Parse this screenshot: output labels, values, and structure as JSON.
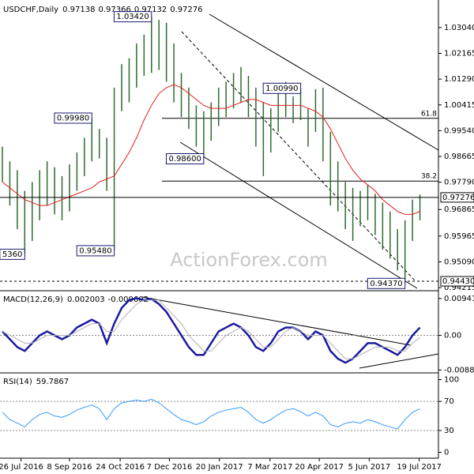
{
  "chart_data": [
    {
      "type": "ohlc",
      "title": "USDCHF,Daily",
      "header_values": [
        0.97138,
        0.97366,
        0.97132,
        0.97276
      ],
      "color": "#2f6a2f",
      "high": [
        0.99,
        0.985,
        0.982,
        0.975,
        0.978,
        0.982,
        0.985,
        0.983,
        0.98,
        0.984,
        0.988,
        0.993,
        0.9998,
        0.996,
        0.993,
        1.01,
        1.018,
        1.02,
        1.025,
        1.028,
        1.0342,
        1.033,
        1.032,
        1.025,
        1.015,
        1.01,
        1.004,
        1.002,
        1.005,
        1.01,
        1.012,
        1.015,
        1.017,
        1.014,
        1.01,
        1.005,
        1.003,
        1.008,
        1.012,
        1.007,
        1.0099,
        1.003,
        1.0095,
        1.01,
        0.995,
        0.985,
        0.978,
        0.976,
        0.975,
        0.977,
        0.974,
        0.971,
        0.968,
        0.962,
        0.965,
        0.972,
        0.9737
      ],
      "low": [
        0.978,
        0.97,
        0.962,
        0.9536,
        0.958,
        0.965,
        0.97,
        0.967,
        0.965,
        0.968,
        0.975,
        0.98,
        0.985,
        0.986,
        0.975,
        0.9548,
        1.002,
        1.005,
        1.01,
        1.014,
        1.015,
        1.016,
        1.012,
        1.005,
        1.0,
        0.996,
        0.99,
        0.986,
        0.992,
        0.997,
        1.0,
        1.003,
        1.005,
        1.0,
        0.99,
        0.98,
        0.988,
        0.995,
        1.0,
        0.998,
        0.999,
        0.99,
        0.995,
        0.985,
        0.97,
        0.968,
        0.962,
        0.958,
        0.963,
        0.965,
        0.96,
        0.955,
        0.952,
        0.948,
        0.9437,
        0.958,
        0.965
      ],
      "ma": {
        "color": "#e02020",
        "values": [
          0.978,
          0.976,
          0.974,
          0.972,
          0.971,
          0.97,
          0.97,
          0.971,
          0.972,
          0.973,
          0.974,
          0.975,
          0.976,
          0.978,
          0.979,
          0.98,
          0.984,
          0.988,
          0.993,
          0.999,
          1.004,
          1.008,
          1.01,
          1.011,
          1.01,
          1.008,
          1.006,
          1.004,
          1.003,
          1.003,
          1.003,
          1.004,
          1.005,
          1.006,
          1.006,
          1.005,
          1.004,
          1.004,
          1.004,
          1.004,
          1.004,
          1.003,
          1.002,
          1.0,
          0.996,
          0.991,
          0.986,
          0.982,
          0.979,
          0.977,
          0.975,
          0.972,
          0.97,
          0.968,
          0.967,
          0.967,
          0.968
        ]
      },
      "xlim": [
        0,
        57
      ],
      "ylim": [
        0.9411,
        1.0384
      ],
      "yticks": [
        {
          "value": 1.0304,
          "label": "1.03040"
        },
        {
          "value": 1.02165,
          "label": "1.02165"
        },
        {
          "value": 1.0129,
          "label": "1.01290"
        },
        {
          "value": 1.00415,
          "label": "1.00415"
        },
        {
          "value": 0.9954,
          "label": "0.99540"
        },
        {
          "value": 0.98665,
          "label": "0.98665"
        },
        {
          "value": 0.9779,
          "label": "0.97790"
        },
        {
          "value": 0.96865,
          "label": "0.96865"
        },
        {
          "value": 0.95965,
          "label": "0.95965"
        },
        {
          "value": 0.9509,
          "label": "0.95090"
        },
        {
          "value": 0.94215,
          "label": "0.94215"
        }
      ],
      "levels": [
        {
          "value": 0.9996,
          "label": "61.8"
        },
        {
          "value": 0.9783,
          "label": "38.2"
        }
      ],
      "price_marks": [
        {
          "value": 0.97276,
          "label": "0.97276"
        },
        {
          "value": 0.9443,
          "label": "0.94430"
        }
      ],
      "annotations": [
        {
          "x": 20,
          "value": 1.0342,
          "label": "1.03420"
        },
        {
          "x": 12,
          "value": 0.9998,
          "label": "0.99980"
        },
        {
          "x": 15,
          "value": 0.9548,
          "label": "0.95480"
        },
        {
          "x": 3,
          "value": 0.9536,
          "label": "5360"
        },
        {
          "x": 27,
          "value": 0.986,
          "label": "0.98600"
        },
        {
          "x": 40,
          "value": 1.0099,
          "label": "1.00990"
        },
        {
          "x": 54,
          "value": 0.9437,
          "label": "0.94370"
        }
      ],
      "watermark": "ActionForex.com"
    },
    {
      "type": "line",
      "title": "MACD(12,26,9)",
      "header_values": [
        0.002003,
        -0.000602
      ],
      "series": [
        {
          "color": "#1a1aa0",
          "values": [
            0.001,
            -0.001,
            -0.003,
            -0.004,
            -0.002,
            0.0,
            0.001,
            0.0,
            -0.001,
            0.0,
            0.002,
            0.003,
            0.004,
            0.003,
            -0.002,
            0.003,
            0.007,
            0.009,
            0.0095,
            0.009,
            0.0093,
            0.008,
            0.006,
            0.003,
            0.0,
            -0.003,
            -0.005,
            -0.005,
            -0.002,
            0.001,
            0.002,
            0.003,
            0.002,
            0.0,
            -0.003,
            -0.004,
            -0.002,
            0.001,
            0.002,
            0.002,
            0.001,
            -0.001,
            0.001,
            0.0,
            -0.004,
            -0.006,
            -0.007,
            -0.006,
            -0.004,
            -0.002,
            -0.002,
            -0.003,
            -0.004,
            -0.005,
            -0.003,
            0.0,
            0.002003
          ]
        },
        {
          "color": "#b0b0b0",
          "values": [
            0.001,
            0.0,
            -0.001,
            -0.002,
            -0.002,
            -0.001,
            0.0,
            0.0,
            0.0,
            0.0,
            0.001,
            0.002,
            0.003,
            0.003,
            0.001,
            0.001,
            0.004,
            0.006,
            0.008,
            0.009,
            0.009,
            0.009,
            0.007,
            0.005,
            0.003,
            0.0,
            -0.002,
            -0.004,
            -0.004,
            -0.002,
            0.0,
            0.001,
            0.002,
            0.001,
            -0.001,
            -0.003,
            -0.003,
            -0.001,
            0.001,
            0.002,
            0.001,
            0.0,
            0.0,
            0.0,
            -0.002,
            -0.004,
            -0.006,
            -0.006,
            -0.005,
            -0.004,
            -0.003,
            -0.003,
            -0.003,
            -0.004,
            -0.004,
            -0.002,
            -0.000602
          ]
        }
      ],
      "xlim": [
        0,
        57
      ],
      "ylim": [
        -0.0092,
        0.0106
      ],
      "yticks": [
        0.009411,
        {
          "value": 0,
          "label": "0.00"
        },
        -0.008852
      ],
      "levels": [
        0
      ]
    },
    {
      "type": "line",
      "title": "RSI(14)",
      "header_values": [
        59.7867
      ],
      "series": [
        {
          "color": "#3399ff",
          "values": [
            55,
            45,
            40,
            35,
            45,
            52,
            55,
            50,
            48,
            52,
            58,
            62,
            65,
            60,
            45,
            60,
            68,
            70,
            72,
            70,
            73,
            68,
            60,
            52,
            45,
            42,
            38,
            42,
            50,
            55,
            58,
            60,
            62,
            55,
            45,
            40,
            45,
            52,
            58,
            60,
            56,
            50,
            55,
            50,
            38,
            35,
            40,
            42,
            40,
            45,
            42,
            38,
            35,
            32,
            45,
            55,
            59.7867
          ]
        }
      ],
      "xlim": [
        0,
        57
      ],
      "ylim": [
        -6,
        105
      ],
      "yticks": [
        100,
        70,
        30,
        0
      ],
      "levels": [
        70,
        30
      ],
      "xticks": [
        {
          "value": 2.5,
          "label": "26 Jul 2016"
        },
        {
          "value": 9.0,
          "label": "8 Sep 2016"
        },
        {
          "value": 15.8,
          "label": "24 Oct 2016"
        },
        {
          "value": 22.4,
          "label": "7 Dec 2016"
        },
        {
          "value": 29.1,
          "label": "20 Jan 2017"
        },
        {
          "value": 35.9,
          "label": "7 Mar 2017"
        },
        {
          "value": 42.5,
          "label": "20 Apr 2017"
        },
        {
          "value": 49.2,
          "label": "5 Jun 2017"
        },
        {
          "value": 55.9,
          "label": "19 Jul 2017"
        }
      ]
    }
  ]
}
